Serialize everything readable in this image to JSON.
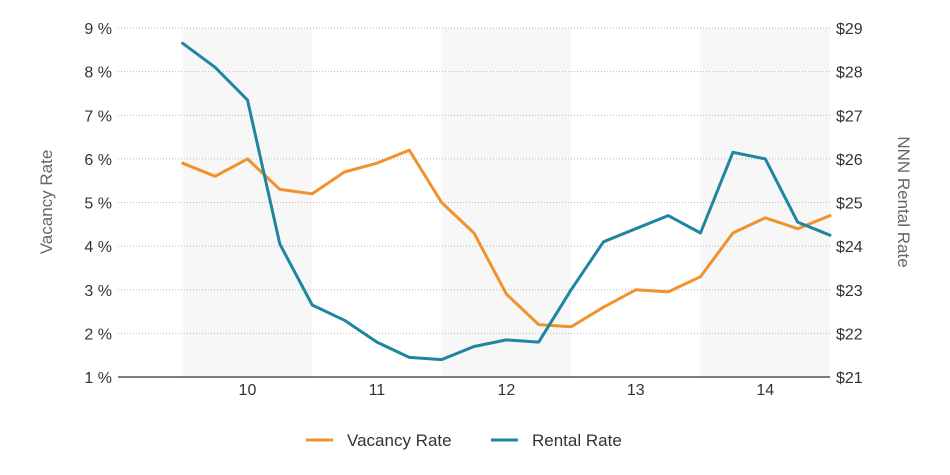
{
  "chart_data": {
    "type": "line",
    "x_categories": [
      "10",
      "11",
      "12",
      "13",
      "14"
    ],
    "x": [
      9.5,
      9.75,
      10,
      10.25,
      10.5,
      10.75,
      11,
      11.25,
      11.5,
      11.75,
      12,
      12.25,
      12.5,
      12.75,
      13,
      13.25,
      13.5,
      13.75,
      14,
      14.25,
      14.5
    ],
    "xlim": [
      9.5,
      14.5
    ],
    "y_left": {
      "label": "Vacancy Rate",
      "ticks": [
        "1 %",
        "2 %",
        "3 %",
        "4 %",
        "5 %",
        "6 %",
        "7 %",
        "8 %",
        "9 %"
      ],
      "min": 1,
      "max": 9
    },
    "y_right": {
      "label": "NNN Rental Rate",
      "ticks": [
        "$21",
        "$22",
        "$23",
        "$24",
        "$25",
        "$26",
        "$27",
        "$28",
        "$29"
      ],
      "min": 21,
      "max": 29
    },
    "series": [
      {
        "name": "Vacancy Rate",
        "axis": "left",
        "color": "#F0922D",
        "values": [
          5.9,
          5.6,
          6.0,
          5.3,
          5.2,
          5.7,
          5.9,
          6.2,
          5.0,
          4.3,
          2.9,
          2.2,
          2.15,
          2.6,
          3.0,
          2.95,
          3.3,
          4.3,
          4.65,
          4.4,
          4.7
        ]
      },
      {
        "name": "Rental Rate",
        "axis": "right",
        "color": "#1F86A1",
        "values": [
          28.65,
          28.1,
          27.35,
          24.05,
          22.65,
          22.3,
          21.8,
          21.45,
          21.4,
          21.7,
          21.85,
          21.8,
          23.0,
          24.1,
          24.4,
          24.7,
          24.3,
          26.15,
          26.0,
          24.55,
          24.25
        ]
      }
    ],
    "grid": true,
    "legend": "bottom-center",
    "bands": "alternating year shading"
  }
}
